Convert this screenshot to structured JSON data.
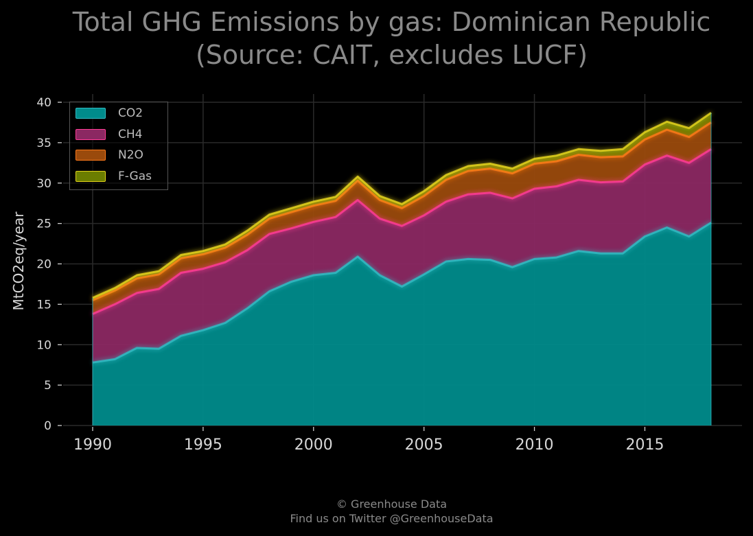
{
  "title_lines": [
    "Total GHG Emissions by gas: Dominican Republic",
    "(Source: CAIT, excludes LUCF)"
  ],
  "footer_lines": [
    "© Greenhouse Data",
    "Find us on Twitter @GreenhouseData"
  ],
  "chart_data": {
    "type": "area",
    "stacked": true,
    "xlabel": "",
    "ylabel": "MtCO2eq/year",
    "xlim": [
      1990,
      2018
    ],
    "ylim": [
      0,
      40
    ],
    "x_ticks": [
      1990,
      1995,
      2000,
      2005,
      2010,
      2015
    ],
    "y_ticks": [
      0,
      5,
      10,
      15,
      20,
      25,
      30,
      35,
      40
    ],
    "grid": true,
    "legend_position": "top-left",
    "x": [
      1990,
      1991,
      1992,
      1993,
      1994,
      1995,
      1996,
      1997,
      1998,
      1999,
      2000,
      2001,
      2002,
      2003,
      2004,
      2005,
      2006,
      2007,
      2008,
      2009,
      2010,
      2011,
      2012,
      2013,
      2014,
      2015,
      2016,
      2017,
      2018
    ],
    "series": [
      {
        "name": "CO2",
        "color": "#008b8b",
        "line_color": "#33bcc4",
        "values": [
          7.8,
          8.2,
          9.6,
          9.5,
          11.1,
          11.8,
          12.7,
          14.5,
          16.6,
          17.8,
          18.6,
          18.9,
          20.9,
          18.6,
          17.2,
          18.7,
          20.3,
          20.6,
          20.5,
          19.6,
          20.6,
          20.8,
          21.6,
          21.3,
          21.3,
          23.4,
          24.5,
          23.4,
          25.1
        ]
      },
      {
        "name": "CH4",
        "color": "#8b2862",
        "line_color": "#ff3c96",
        "values": [
          6.0,
          6.8,
          6.8,
          7.4,
          7.8,
          7.6,
          7.5,
          7.2,
          7.1,
          6.6,
          6.6,
          6.9,
          7.0,
          7.0,
          7.5,
          7.3,
          7.4,
          8.0,
          8.3,
          8.5,
          8.7,
          8.8,
          8.8,
          8.8,
          8.9,
          8.9,
          8.9,
          9.1,
          9.1
        ]
      },
      {
        "name": "N2O",
        "color": "#9a4a0c",
        "line_color": "#ff7a1a",
        "values": [
          1.7,
          1.7,
          1.8,
          1.8,
          1.8,
          1.8,
          1.8,
          1.9,
          1.9,
          2.0,
          2.0,
          2.0,
          2.4,
          2.3,
          2.2,
          2.4,
          2.7,
          2.9,
          3.0,
          3.1,
          3.1,
          3.1,
          3.1,
          3.1,
          3.1,
          3.1,
          3.2,
          3.2,
          3.3
        ]
      },
      {
        "name": "F-Gas",
        "color": "#6b7d00",
        "line_color": "#e3d21c",
        "values": [
          0.3,
          0.3,
          0.4,
          0.4,
          0.4,
          0.4,
          0.4,
          0.5,
          0.5,
          0.5,
          0.5,
          0.5,
          0.5,
          0.5,
          0.5,
          0.6,
          0.6,
          0.6,
          0.6,
          0.6,
          0.6,
          0.7,
          0.7,
          0.8,
          0.9,
          0.9,
          1.0,
          1.1,
          1.2
        ]
      }
    ]
  }
}
